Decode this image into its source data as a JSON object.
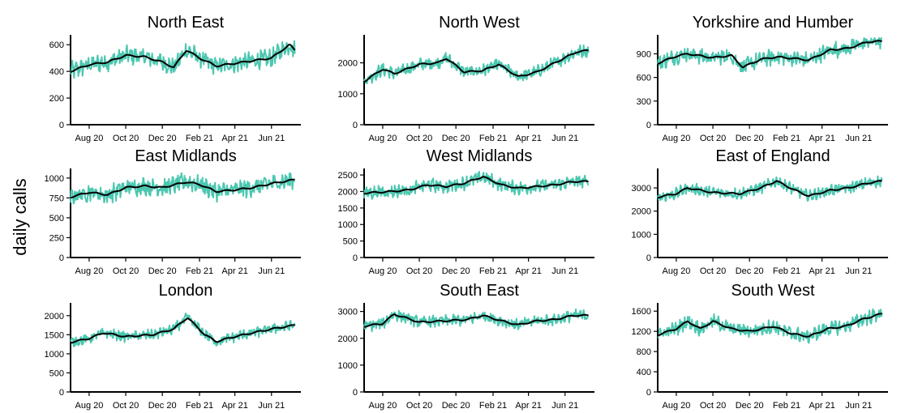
{
  "figure": {
    "ylabel": "daily calls",
    "colors": {
      "daily": "#4cc7b0",
      "smooth": "#000000"
    }
  },
  "chart_data": [
    {
      "type": "line",
      "title": "North East",
      "ylabel": "daily calls",
      "ylim": [
        0,
        650
      ],
      "yticks": [
        0,
        200,
        400,
        600
      ],
      "xlim": [
        "2020-07-01",
        "2021-07-20"
      ],
      "xticks": [
        "2020-08-01",
        "2020-10-01",
        "2020-12-01",
        "2021-02-01",
        "2021-04-01",
        "2021-06-01"
      ],
      "xticklabels": [
        "Aug 20",
        "Oct 20",
        "Dec 20",
        "Feb 21",
        "Apr 21",
        "Jun 21"
      ],
      "grid": false,
      "series": [
        {
          "x": [
            "2020-07-01",
            "2020-08-01",
            "2020-09-01",
            "2020-10-01",
            "2020-11-01",
            "2020-12-01",
            "2020-12-20",
            "2021-01-10",
            "2021-02-01",
            "2021-03-01",
            "2021-04-01",
            "2021-05-01",
            "2021-06-01",
            "2021-07-01",
            "2021-07-10"
          ],
          "values": [
            400,
            450,
            470,
            520,
            510,
            470,
            430,
            560,
            500,
            440,
            460,
            480,
            500,
            600,
            560
          ],
          "noise": 65,
          "color": "#4cc7b0"
        },
        {
          "x": [
            "2020-07-01",
            "2020-08-01",
            "2020-09-01",
            "2020-10-01",
            "2020-11-01",
            "2020-12-01",
            "2020-12-20",
            "2021-01-10",
            "2021-02-01",
            "2021-03-01",
            "2021-04-01",
            "2021-05-01",
            "2021-06-01",
            "2021-07-01",
            "2021-07-10"
          ],
          "values": [
            400,
            450,
            470,
            520,
            510,
            470,
            430,
            560,
            500,
            440,
            460,
            480,
            500,
            600,
            560
          ],
          "noise": 0,
          "color": "#000000"
        }
      ]
    },
    {
      "type": "line",
      "title": "North West",
      "ylabel": "daily calls",
      "ylim": [
        0,
        2800
      ],
      "yticks": [
        0,
        1000,
        2000
      ],
      "xlim": [
        "2020-07-01",
        "2021-07-20"
      ],
      "xticks": [
        "2020-08-01",
        "2020-10-01",
        "2020-12-01",
        "2021-02-01",
        "2021-04-01",
        "2021-06-01"
      ],
      "xticklabels": [
        "Aug 20",
        "Oct 20",
        "Dec 20",
        "Feb 21",
        "Apr 21",
        "Jun 21"
      ],
      "grid": false,
      "series": [
        {
          "x": [
            "2020-07-01",
            "2020-08-01",
            "2020-08-20",
            "2020-10-01",
            "2020-11-01",
            "2020-11-15",
            "2020-12-15",
            "2021-01-15",
            "2021-02-10",
            "2021-03-15",
            "2021-04-15",
            "2021-05-15",
            "2021-06-20",
            "2021-07-10"
          ],
          "values": [
            1400,
            1800,
            1650,
            1950,
            2000,
            2150,
            1700,
            1750,
            1950,
            1550,
            1700,
            2000,
            2350,
            2400
          ],
          "noise": 190,
          "color": "#4cc7b0"
        },
        {
          "x": [
            "2020-07-01",
            "2020-08-01",
            "2020-08-20",
            "2020-10-01",
            "2020-11-01",
            "2020-11-15",
            "2020-12-15",
            "2021-01-15",
            "2021-02-10",
            "2021-03-15",
            "2021-04-15",
            "2021-05-15",
            "2021-06-20",
            "2021-07-10"
          ],
          "values": [
            1400,
            1800,
            1650,
            1950,
            2000,
            2150,
            1700,
            1750,
            1950,
            1550,
            1700,
            2000,
            2350,
            2400
          ],
          "noise": 0,
          "color": "#000000"
        }
      ]
    },
    {
      "type": "line",
      "title": "Yorkshire and Humber",
      "ylabel": "daily calls",
      "ylim": [
        0,
        1100
      ],
      "yticks": [
        0,
        300,
        600,
        900
      ],
      "xlim": [
        "2020-07-01",
        "2021-07-20"
      ],
      "xticks": [
        "2020-08-01",
        "2020-10-01",
        "2020-12-01",
        "2021-02-01",
        "2021-04-01",
        "2021-06-01"
      ],
      "xticklabels": [
        "Aug 20",
        "Oct 20",
        "Dec 20",
        "Feb 21",
        "Apr 21",
        "Jun 21"
      ],
      "grid": false,
      "series": [
        {
          "x": [
            "2020-07-01",
            "2020-08-01",
            "2020-08-20",
            "2020-10-01",
            "2020-11-01",
            "2020-11-20",
            "2020-12-20",
            "2021-01-15",
            "2021-02-15",
            "2021-03-10",
            "2021-04-15",
            "2021-05-15",
            "2021-06-15",
            "2021-07-10"
          ],
          "values": [
            780,
            870,
            900,
            850,
            880,
            730,
            830,
            860,
            840,
            820,
            950,
            970,
            1050,
            1060
          ],
          "noise": 95,
          "color": "#4cc7b0"
        },
        {
          "x": [
            "2020-07-01",
            "2020-08-01",
            "2020-08-20",
            "2020-10-01",
            "2020-11-01",
            "2020-11-20",
            "2020-12-20",
            "2021-01-15",
            "2021-02-15",
            "2021-03-10",
            "2021-04-15",
            "2021-05-15",
            "2021-06-15",
            "2021-07-10"
          ],
          "values": [
            780,
            870,
            900,
            850,
            880,
            730,
            830,
            860,
            840,
            820,
            950,
            970,
            1050,
            1060
          ],
          "noise": 0,
          "color": "#000000"
        }
      ]
    },
    {
      "type": "line",
      "title": "East Midlands",
      "ylabel": "daily calls",
      "ylim": [
        0,
        1080
      ],
      "yticks": [
        0,
        250,
        500,
        750,
        1000
      ],
      "xlim": [
        "2020-07-01",
        "2021-07-20"
      ],
      "xticks": [
        "2020-08-01",
        "2020-10-01",
        "2020-12-01",
        "2021-02-01",
        "2021-04-01",
        "2021-06-01"
      ],
      "xticklabels": [
        "Aug 20",
        "Oct 20",
        "Dec 20",
        "Feb 21",
        "Apr 21",
        "Jun 21"
      ],
      "grid": false,
      "series": [
        {
          "x": [
            "2020-07-01",
            "2020-08-01",
            "2020-09-01",
            "2020-10-01",
            "2020-11-01",
            "2020-12-01",
            "2021-01-10",
            "2021-02-01",
            "2021-03-01",
            "2021-04-01",
            "2021-05-01",
            "2021-06-01",
            "2021-07-10"
          ],
          "values": [
            760,
            820,
            790,
            880,
            900,
            880,
            950,
            920,
            830,
            850,
            880,
            930,
            980
          ],
          "noise": 110,
          "color": "#4cc7b0"
        },
        {
          "x": [
            "2020-07-01",
            "2020-08-01",
            "2020-09-01",
            "2020-10-01",
            "2020-11-01",
            "2020-12-01",
            "2021-01-10",
            "2021-02-01",
            "2021-03-01",
            "2021-04-01",
            "2021-05-01",
            "2021-06-01",
            "2021-07-10"
          ],
          "values": [
            760,
            820,
            790,
            880,
            900,
            880,
            950,
            920,
            830,
            850,
            880,
            930,
            980
          ],
          "noise": 0,
          "color": "#000000"
        }
      ]
    },
    {
      "type": "line",
      "title": "West Midlands",
      "ylabel": "daily calls",
      "ylim": [
        0,
        2600
      ],
      "yticks": [
        0,
        500,
        1000,
        1500,
        2000,
        2500
      ],
      "xlim": [
        "2020-07-01",
        "2021-07-20"
      ],
      "xticks": [
        "2020-08-01",
        "2020-10-01",
        "2020-12-01",
        "2021-02-01",
        "2021-04-01",
        "2021-06-01"
      ],
      "xticklabels": [
        "Aug 20",
        "Oct 20",
        "Dec 20",
        "Feb 21",
        "Apr 21",
        "Jun 21"
      ],
      "grid": false,
      "series": [
        {
          "x": [
            "2020-07-01",
            "2020-08-15",
            "2020-09-15",
            "2020-10-15",
            "2020-11-15",
            "2020-12-15",
            "2021-01-15",
            "2021-02-15",
            "2021-03-15",
            "2021-04-15",
            "2021-05-15",
            "2021-06-15",
            "2021-07-10"
          ],
          "values": [
            1950,
            2000,
            2050,
            2200,
            2150,
            2250,
            2450,
            2200,
            2100,
            2150,
            2200,
            2300,
            2300
          ],
          "noise": 190,
          "color": "#4cc7b0"
        },
        {
          "x": [
            "2020-07-01",
            "2020-08-15",
            "2020-09-15",
            "2020-10-15",
            "2020-11-15",
            "2020-12-15",
            "2021-01-15",
            "2021-02-15",
            "2021-03-15",
            "2021-04-15",
            "2021-05-15",
            "2021-06-15",
            "2021-07-10"
          ],
          "values": [
            1950,
            2000,
            2050,
            2200,
            2150,
            2250,
            2450,
            2200,
            2100,
            2150,
            2200,
            2300,
            2300
          ],
          "noise": 0,
          "color": "#000000"
        }
      ]
    },
    {
      "type": "line",
      "title": "East of England",
      "ylabel": "daily calls",
      "ylim": [
        0,
        3700
      ],
      "yticks": [
        0,
        1000,
        2000,
        3000
      ],
      "xlim": [
        "2020-07-01",
        "2021-07-20"
      ],
      "xticks": [
        "2020-08-01",
        "2020-10-01",
        "2020-12-01",
        "2021-02-01",
        "2021-04-01",
        "2021-06-01"
      ],
      "xticklabels": [
        "Aug 20",
        "Oct 20",
        "Dec 20",
        "Feb 21",
        "Apr 21",
        "Jun 21"
      ],
      "grid": false,
      "series": [
        {
          "x": [
            "2020-07-01",
            "2020-08-01",
            "2020-08-20",
            "2020-10-01",
            "2020-11-15",
            "2020-12-20",
            "2021-01-15",
            "2021-02-15",
            "2021-03-10",
            "2021-04-15",
            "2021-05-15",
            "2021-06-15",
            "2021-07-10"
          ],
          "values": [
            2600,
            2750,
            3000,
            2800,
            2750,
            3000,
            3300,
            2900,
            2650,
            2900,
            3000,
            3200,
            3300
          ],
          "noise": 230,
          "color": "#4cc7b0"
        },
        {
          "x": [
            "2020-07-01",
            "2020-08-01",
            "2020-08-20",
            "2020-10-01",
            "2020-11-15",
            "2020-12-20",
            "2021-01-15",
            "2021-02-15",
            "2021-03-10",
            "2021-04-15",
            "2021-05-15",
            "2021-06-15",
            "2021-07-10"
          ],
          "values": [
            2600,
            2750,
            3000,
            2800,
            2750,
            3000,
            3300,
            2900,
            2650,
            2900,
            3000,
            3200,
            3300
          ],
          "noise": 0,
          "color": "#000000"
        }
      ]
    },
    {
      "type": "line",
      "title": "London",
      "ylabel": "daily calls",
      "ylim": [
        0,
        2250
      ],
      "yticks": [
        0,
        500,
        1000,
        1500,
        2000
      ],
      "xlim": [
        "2020-07-01",
        "2021-07-20"
      ],
      "xticks": [
        "2020-08-01",
        "2020-10-01",
        "2020-12-01",
        "2021-02-01",
        "2021-04-01",
        "2021-06-01"
      ],
      "xticklabels": [
        "Aug 20",
        "Oct 20",
        "Dec 20",
        "Feb 21",
        "Apr 21",
        "Jun 21"
      ],
      "grid": false,
      "series": [
        {
          "x": [
            "2020-07-01",
            "2020-08-01",
            "2020-08-25",
            "2020-10-01",
            "2020-11-15",
            "2020-12-20",
            "2021-01-12",
            "2021-02-10",
            "2021-03-01",
            "2021-04-01",
            "2021-05-01",
            "2021-06-01",
            "2021-07-10"
          ],
          "values": [
            1300,
            1400,
            1550,
            1450,
            1500,
            1650,
            1950,
            1500,
            1320,
            1450,
            1550,
            1650,
            1750
          ],
          "noise": 130,
          "color": "#4cc7b0"
        },
        {
          "x": [
            "2020-07-01",
            "2020-08-01",
            "2020-08-25",
            "2020-10-01",
            "2020-11-15",
            "2020-12-20",
            "2021-01-12",
            "2021-02-10",
            "2021-03-01",
            "2021-04-01",
            "2021-05-01",
            "2021-06-01",
            "2021-07-10"
          ],
          "values": [
            1300,
            1400,
            1550,
            1450,
            1500,
            1650,
            1950,
            1500,
            1320,
            1450,
            1550,
            1650,
            1750
          ],
          "noise": 0,
          "color": "#000000"
        }
      ]
    },
    {
      "type": "line",
      "title": "South East",
      "ylabel": "daily calls",
      "ylim": [
        0,
        3200
      ],
      "yticks": [
        0,
        1000,
        2000,
        3000
      ],
      "xlim": [
        "2020-07-01",
        "2021-07-20"
      ],
      "xticks": [
        "2020-08-01",
        "2020-10-01",
        "2020-12-01",
        "2021-02-01",
        "2021-04-01",
        "2021-06-01"
      ],
      "xticklabels": [
        "Aug 20",
        "Oct 20",
        "Dec 20",
        "Feb 21",
        "Apr 21",
        "Jun 21"
      ],
      "grid": false,
      "series": [
        {
          "x": [
            "2020-07-01",
            "2020-08-01",
            "2020-08-20",
            "2020-10-01",
            "2020-11-15",
            "2020-12-20",
            "2021-01-15",
            "2021-02-15",
            "2021-03-15",
            "2021-04-15",
            "2021-05-15",
            "2021-06-15",
            "2021-07-10"
          ],
          "values": [
            2450,
            2550,
            2900,
            2600,
            2650,
            2700,
            2850,
            2650,
            2500,
            2650,
            2700,
            2850,
            2850
          ],
          "noise": 200,
          "color": "#4cc7b0"
        },
        {
          "x": [
            "2020-07-01",
            "2020-08-01",
            "2020-08-20",
            "2020-10-01",
            "2020-11-15",
            "2020-12-20",
            "2021-01-15",
            "2021-02-15",
            "2021-03-15",
            "2021-04-15",
            "2021-05-15",
            "2021-06-15",
            "2021-07-10"
          ],
          "values": [
            2450,
            2550,
            2900,
            2600,
            2650,
            2700,
            2850,
            2650,
            2500,
            2650,
            2700,
            2850,
            2850
          ],
          "noise": 0,
          "color": "#000000"
        }
      ]
    },
    {
      "type": "line",
      "title": "South West",
      "ylabel": "daily calls",
      "ylim": [
        0,
        1700
      ],
      "yticks": [
        0,
        400,
        800,
        1200,
        1600
      ],
      "xlim": [
        "2020-07-01",
        "2021-07-20"
      ],
      "xticks": [
        "2020-08-01",
        "2020-10-01",
        "2020-12-01",
        "2021-02-01",
        "2021-04-01",
        "2021-06-01"
      ],
      "xticklabels": [
        "Aug 20",
        "Oct 20",
        "Dec 20",
        "Feb 21",
        "Apr 21",
        "Jun 21"
      ],
      "grid": false,
      "series": [
        {
          "x": [
            "2020-07-01",
            "2020-08-01",
            "2020-08-20",
            "2020-09-10",
            "2020-10-01",
            "2020-11-01",
            "2020-12-01",
            "2021-01-10",
            "2021-02-10",
            "2021-03-10",
            "2021-04-10",
            "2021-05-10",
            "2021-06-10",
            "2021-07-10"
          ],
          "values": [
            1130,
            1250,
            1400,
            1250,
            1400,
            1250,
            1200,
            1300,
            1150,
            1100,
            1250,
            1300,
            1450,
            1550
          ],
          "noise": 130,
          "color": "#4cc7b0"
        },
        {
          "x": [
            "2020-07-01",
            "2020-08-01",
            "2020-08-20",
            "2020-09-10",
            "2020-10-01",
            "2020-11-01",
            "2020-12-01",
            "2021-01-10",
            "2021-02-10",
            "2021-03-10",
            "2021-04-10",
            "2021-05-10",
            "2021-06-10",
            "2021-07-10"
          ],
          "values": [
            1130,
            1250,
            1400,
            1250,
            1400,
            1250,
            1200,
            1300,
            1150,
            1100,
            1250,
            1300,
            1450,
            1550
          ],
          "noise": 0,
          "color": "#000000"
        }
      ]
    }
  ]
}
